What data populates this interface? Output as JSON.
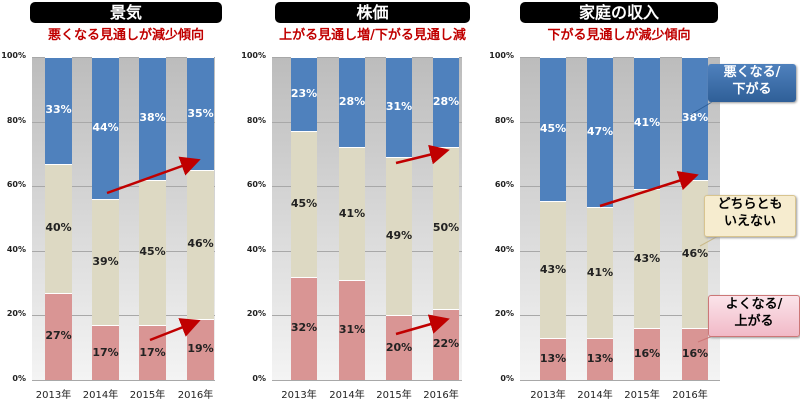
{
  "chart_data": [
    {
      "type": "bar",
      "stacked": true,
      "title": "景気",
      "subtitle": "悪くなる見通しが減少傾向",
      "categories": [
        "2013年",
        "2014年",
        "2015年",
        "2016年"
      ],
      "series": [
        {
          "name": "よくなる/上がる",
          "values": [
            27,
            17,
            17,
            19
          ]
        },
        {
          "name": "どちらともいえない",
          "values": [
            40,
            39,
            45,
            46
          ]
        },
        {
          "name": "悪くなる/下がる",
          "values": [
            33,
            44,
            38,
            35
          ]
        }
      ],
      "yticks": [
        "0%",
        "20%",
        "40%",
        "60%",
        "80%",
        "100%"
      ],
      "ylim": [
        0,
        100
      ]
    },
    {
      "type": "bar",
      "stacked": true,
      "title": "株価",
      "subtitle": "上がる見通し増/下がる見通し減",
      "categories": [
        "2013年",
        "2014年",
        "2015年",
        "2016年"
      ],
      "series": [
        {
          "name": "よくなる/上がる",
          "values": [
            32,
            31,
            20,
            22
          ]
        },
        {
          "name": "どちらともいえない",
          "values": [
            45,
            41,
            49,
            50
          ]
        },
        {
          "name": "悪くなる/下がる",
          "values": [
            23,
            28,
            31,
            28
          ]
        }
      ],
      "yticks": [
        "0%",
        "20%",
        "40%",
        "60%",
        "80%",
        "100%"
      ],
      "ylim": [
        0,
        100
      ]
    },
    {
      "type": "bar",
      "stacked": true,
      "title": "家庭の収入",
      "subtitle": "下がる見通しが減少傾向",
      "categories": [
        "2013年",
        "2014年",
        "2015年",
        "2016年"
      ],
      "series": [
        {
          "name": "よくなる/上がる",
          "values": [
            13,
            13,
            16,
            16
          ]
        },
        {
          "name": "どちらともいえない",
          "values": [
            43,
            41,
            43,
            46
          ]
        },
        {
          "name": "悪くなる/下がる",
          "values": [
            45,
            47,
            41,
            38
          ]
        }
      ],
      "yticks": [
        "0%",
        "20%",
        "40%",
        "60%",
        "80%",
        "100%"
      ],
      "ylim": [
        0,
        100
      ]
    }
  ],
  "legend": {
    "bad": "悪くなる/\n下がる",
    "neutral": "どちらとも\nいえない",
    "good": "よくなる/\n上がる"
  },
  "colors": {
    "good": "#d99594",
    "neutral": "#ddd9c3",
    "bad": "#4f81bd"
  }
}
